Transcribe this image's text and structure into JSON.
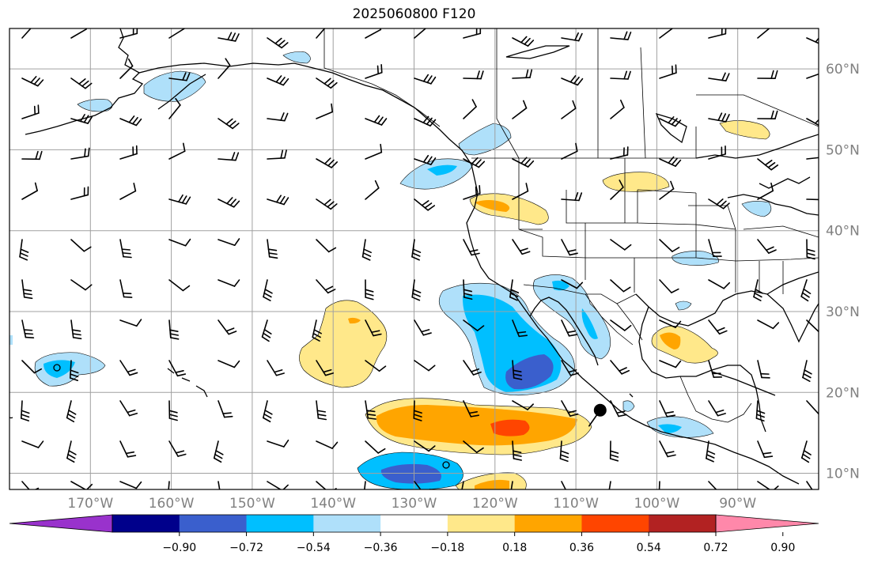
{
  "map": {
    "title": "2025060800 F120",
    "extent": {
      "lon_min": -180,
      "lon_max": -80,
      "lat_min": 8,
      "lat_max": 65
    },
    "lat_labels": [
      {
        "lat": 60,
        "text": "60°N"
      },
      {
        "lat": 50,
        "text": "50°N"
      },
      {
        "lat": 40,
        "text": "40°N"
      },
      {
        "lat": 30,
        "text": "30°N"
      },
      {
        "lat": 20,
        "text": "20°N"
      },
      {
        "lat": 10,
        "text": "10°N"
      }
    ],
    "lon_labels": [
      {
        "lon": -170,
        "text": "170°W"
      },
      {
        "lon": -160,
        "text": "160°W"
      },
      {
        "lon": -150,
        "text": "150°W"
      },
      {
        "lon": -140,
        "text": "140°W"
      },
      {
        "lon": -130,
        "text": "130°W"
      },
      {
        "lon": -120,
        "text": "120°W"
      },
      {
        "lon": -110,
        "text": "110°W"
      },
      {
        "lon": -100,
        "text": "100°W"
      },
      {
        "lon": -90,
        "text": "90°W"
      }
    ],
    "marker": {
      "lon": -107,
      "lat": 17.8,
      "color": "#000000"
    }
  },
  "colorbar": {
    "colors": [
      "#9932cc",
      "#00008b",
      "#3a5fcd",
      "#00bfff",
      "#afe0fa",
      "#ffffff",
      "#ffe88a",
      "#ffa500",
      "#ff4500",
      "#b22222",
      "#ff88aa"
    ],
    "tick_labels": [
      "−0.90",
      "−0.72",
      "−0.54",
      "−0.36",
      "−0.18",
      "0.18",
      "0.36",
      "0.54",
      "0.72",
      "0.90"
    ]
  }
}
